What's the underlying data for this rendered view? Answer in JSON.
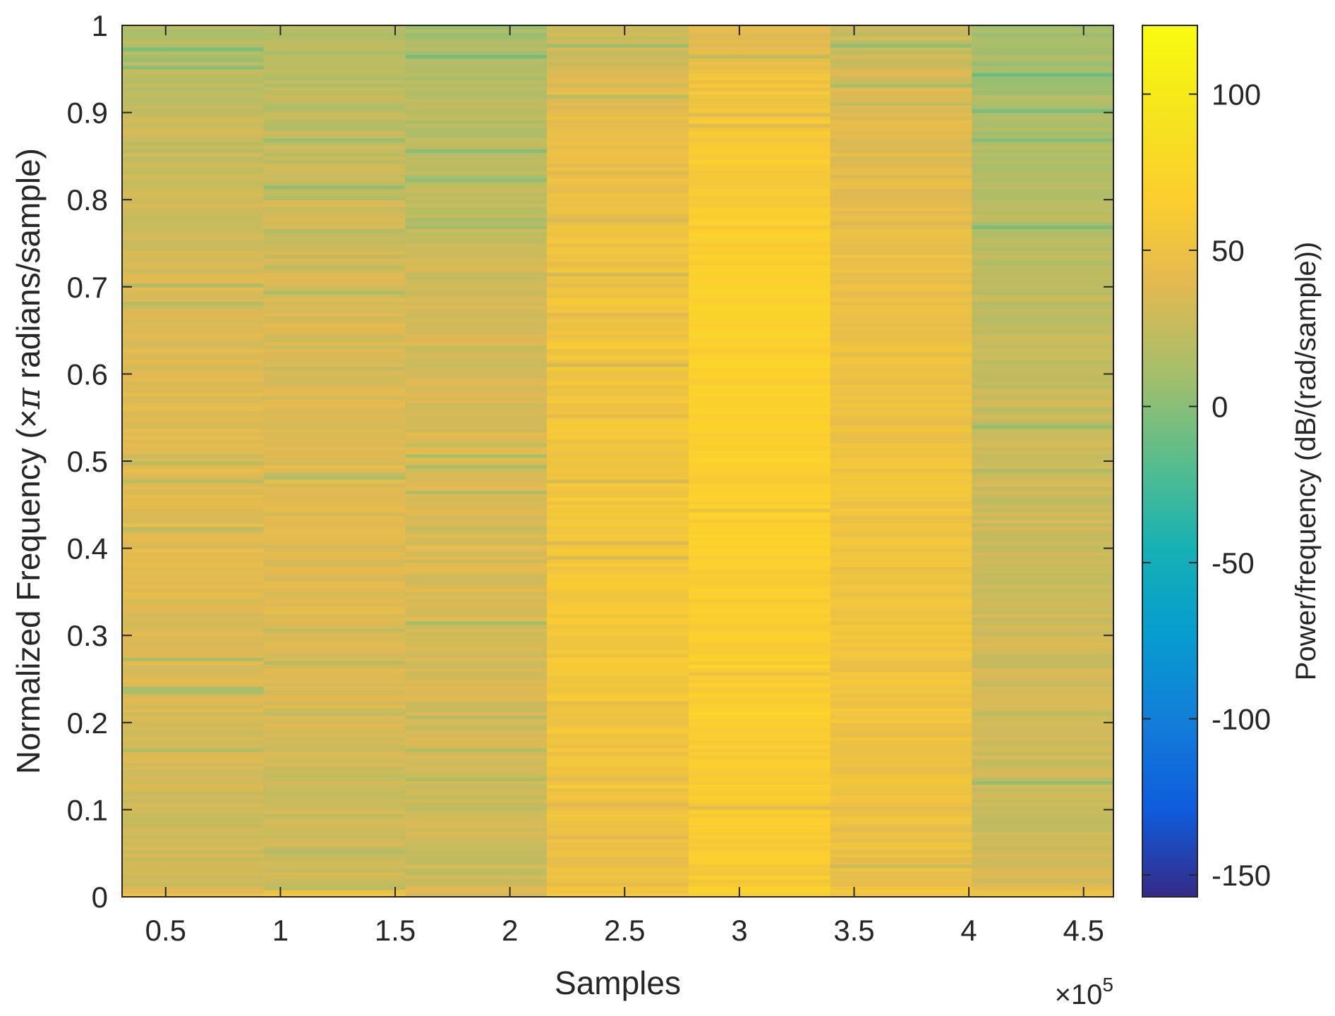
{
  "chart_data": {
    "type": "heatmap",
    "title": "",
    "xlabel": "Samples",
    "ylabel": "Normalized Frequency (×π radians/sample)",
    "ylabel_parts": {
      "before": "Normalized Frequency (",
      "times": "×",
      "pi": "π",
      "after": " radians/sample)"
    },
    "x_exponent": {
      "times": "×",
      "base": "10",
      "power": "5"
    },
    "colorbar_label": "Power/frequency (dB/(rad/sample))",
    "xlim": [
      0.31,
      4.63
    ],
    "ylim": [
      0,
      1
    ],
    "clim": [
      -157,
      122
    ],
    "x_ticks": [
      0.5,
      1,
      1.5,
      2,
      2.5,
      3,
      3.5,
      4,
      4.5
    ],
    "x_tick_labels": [
      "0.5",
      "1",
      "1.5",
      "2",
      "2.5",
      "3",
      "3.5",
      "4",
      "4.5"
    ],
    "y_ticks": [
      0,
      0.1,
      0.2,
      0.3,
      0.4,
      0.5,
      0.6,
      0.7,
      0.8,
      0.9,
      1
    ],
    "y_tick_labels": [
      "0",
      "0.1",
      "0.2",
      "0.3",
      "0.4",
      "0.5",
      "0.6",
      "0.7",
      "0.8",
      "0.9",
      "1"
    ],
    "colorbar_ticks": [
      -150,
      -100,
      -50,
      0,
      50,
      100
    ],
    "colorbar_tick_labels": [
      "-150",
      "-100",
      "-50",
      "0",
      "50",
      "100"
    ],
    "segment_edges": [
      0.31,
      0.927,
      1.544,
      2.161,
      2.779,
      3.396,
      4.013,
      4.63
    ],
    "freq_profiles": [
      {
        "segment": 1,
        "freq": [
          0,
          0.015,
          0.1,
          0.3,
          0.5,
          0.7,
          0.9,
          1.0
        ],
        "power_db": [
          55,
          30,
          30,
          38,
          40,
          35,
          25,
          18
        ]
      },
      {
        "segment": 2,
        "freq": [
          0,
          0.015,
          0.1,
          0.3,
          0.5,
          0.7,
          0.9,
          1.0
        ],
        "power_db": [
          55,
          28,
          28,
          38,
          38,
          34,
          22,
          15
        ]
      },
      {
        "segment": 3,
        "freq": [
          0,
          0.015,
          0.1,
          0.3,
          0.5,
          0.7,
          0.9,
          1.0
        ],
        "power_db": [
          55,
          28,
          28,
          35,
          36,
          30,
          18,
          12
        ]
      },
      {
        "segment": 4,
        "freq": [
          0,
          0.015,
          0.1,
          0.3,
          0.5,
          0.7,
          0.9,
          1.0
        ],
        "power_db": [
          58,
          48,
          52,
          58,
          56,
          54,
          42,
          25
        ]
      },
      {
        "segment": 5,
        "freq": [
          0,
          0.015,
          0.1,
          0.3,
          0.5,
          0.7,
          0.9,
          1.0
        ],
        "power_db": [
          68,
          62,
          64,
          66,
          68,
          70,
          58,
          38
        ]
      },
      {
        "segment": 6,
        "freq": [
          0,
          0.015,
          0.1,
          0.3,
          0.5,
          0.7,
          0.9,
          1.0
        ],
        "power_db": [
          58,
          48,
          50,
          54,
          52,
          48,
          38,
          24
        ]
      },
      {
        "segment": 7,
        "freq": [
          0,
          0.015,
          0.1,
          0.3,
          0.5,
          0.7,
          0.9,
          1.0
        ],
        "power_db": [
          55,
          30,
          28,
          30,
          28,
          22,
          14,
          8
        ]
      }
    ],
    "grid": false
  }
}
